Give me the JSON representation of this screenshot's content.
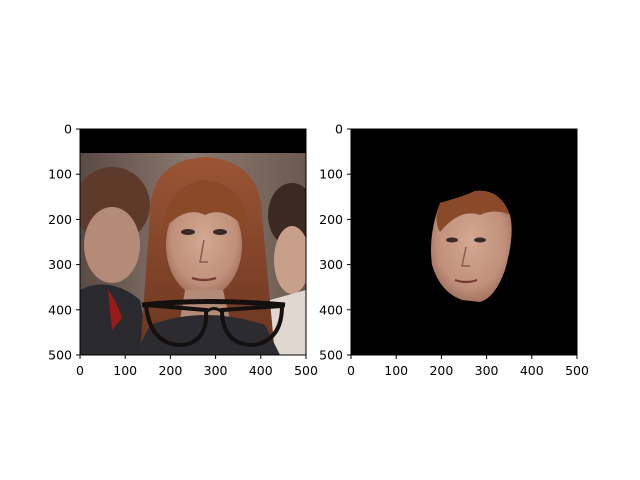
{
  "figure": {
    "subplots": [
      {
        "name": "original-with-glasses",
        "content": "photo of a woman with auburn hair, other people in background, cartoon eyeglasses overlay near bottom",
        "x_ticks": [
          "0",
          "100",
          "200",
          "300",
          "400",
          "500"
        ],
        "y_ticks": [
          "0",
          "100",
          "200",
          "300",
          "400",
          "500"
        ]
      },
      {
        "name": "face-mask",
        "content": "cropped face region on black background",
        "x_ticks": [
          "0",
          "100",
          "200",
          "300",
          "400",
          "500"
        ],
        "y_ticks": [
          "0",
          "100",
          "200",
          "300",
          "400",
          "500"
        ]
      }
    ],
    "colors": {
      "background": "#ffffff",
      "masked": "#000000",
      "hair": "#8a4a2a",
      "skin": "#c99a82",
      "glasses": "#141010"
    }
  }
}
